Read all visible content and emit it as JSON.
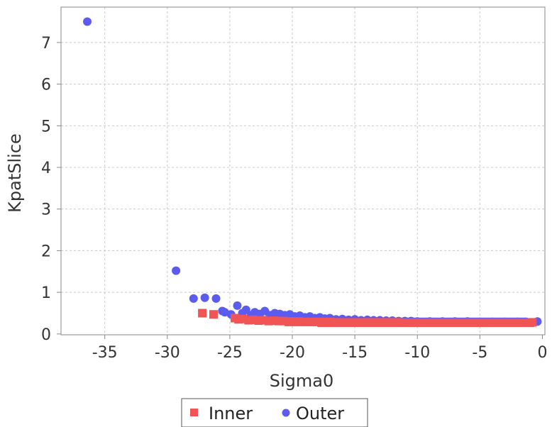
{
  "chart_data": {
    "type": "scatter",
    "xlabel": "Sigma0",
    "ylabel": "KpatSlice",
    "xlim": [
      -38.5,
      0.2
    ],
    "ylim": [
      -0.02,
      7.85
    ],
    "x_ticks": [
      -35,
      -30,
      -25,
      -20,
      -15,
      -10,
      -5,
      0
    ],
    "y_ticks": [
      0,
      1,
      2,
      3,
      4,
      5,
      6,
      7
    ],
    "grid": true,
    "legend_position": "bottom-center",
    "series": [
      {
        "name": "Inner",
        "color": "#f05454",
        "marker": "square",
        "x": [
          -27.2,
          -26.3,
          -24.6,
          -24.3,
          -23.9,
          -23.5,
          -23.1,
          -22.7,
          -22.3,
          -21.9,
          -21.5,
          -21.1,
          -20.7,
          -20.3,
          -19.9,
          -19.5,
          -19.0,
          -18.5,
          -18.0,
          -17.5,
          -17.0,
          -16.5,
          -16.0,
          -15.5,
          -15.0,
          -14.5,
          -14.0,
          -13.5,
          -13.0,
          -12.5,
          -12.0,
          -11.5,
          -11.0,
          -10.5,
          -10.0,
          -9.5,
          -9.0,
          -8.5,
          -8.0,
          -7.5,
          -7.0,
          -6.5,
          -6.0,
          -5.5,
          -5.0,
          -4.5,
          -4.0,
          -3.5,
          -3.0,
          -2.5,
          -2.0,
          -1.5,
          -1.0,
          -0.8
        ],
        "y": [
          0.5,
          0.47,
          0.38,
          0.35,
          0.36,
          0.33,
          0.34,
          0.32,
          0.33,
          0.31,
          0.32,
          0.31,
          0.31,
          0.3,
          0.3,
          0.3,
          0.29,
          0.29,
          0.29,
          0.29,
          0.29,
          0.28,
          0.28,
          0.28,
          0.28,
          0.28,
          0.28,
          0.28,
          0.28,
          0.28,
          0.28,
          0.28,
          0.27,
          0.27,
          0.27,
          0.27,
          0.27,
          0.27,
          0.27,
          0.27,
          0.27,
          0.27,
          0.27,
          0.27,
          0.27,
          0.27,
          0.27,
          0.27,
          0.27,
          0.27,
          0.27,
          0.27,
          0.27,
          0.28
        ]
      },
      {
        "name": "Outer",
        "color": "#5b5bf0",
        "marker": "circle",
        "x": [
          -36.4,
          -29.3,
          -27.9,
          -27.0,
          -26.1,
          -25.6,
          -25.4,
          -24.9,
          -24.4,
          -24.0,
          -23.7,
          -23.3,
          -23.0,
          -22.6,
          -22.2,
          -21.8,
          -21.4,
          -21.0,
          -20.6,
          -20.2,
          -19.8,
          -19.4,
          -19.0,
          -18.6,
          -18.2,
          -17.8,
          -17.4,
          -17.0,
          -16.5,
          -16.0,
          -15.5,
          -15.0,
          -14.5,
          -14.0,
          -13.5,
          -13.0,
          -12.5,
          -12.0,
          -11.5,
          -11.0,
          -10.5,
          -10.0,
          -9.0,
          -8.0,
          -7.0,
          -6.0,
          -5.0,
          -4.0,
          -3.0,
          -2.0,
          -1.3,
          -0.4
        ],
        "y": [
          7.5,
          1.52,
          0.85,
          0.87,
          0.85,
          0.55,
          0.52,
          0.47,
          0.68,
          0.5,
          0.58,
          0.45,
          0.52,
          0.48,
          0.55,
          0.45,
          0.5,
          0.48,
          0.45,
          0.47,
          0.42,
          0.44,
          0.4,
          0.42,
          0.38,
          0.4,
          0.37,
          0.38,
          0.35,
          0.36,
          0.34,
          0.35,
          0.33,
          0.34,
          0.33,
          0.33,
          0.32,
          0.32,
          0.31,
          0.31,
          0.31,
          0.3,
          0.3,
          0.3,
          0.3,
          0.3,
          0.29,
          0.29,
          0.29,
          0.29,
          0.29,
          0.3
        ]
      }
    ]
  }
}
